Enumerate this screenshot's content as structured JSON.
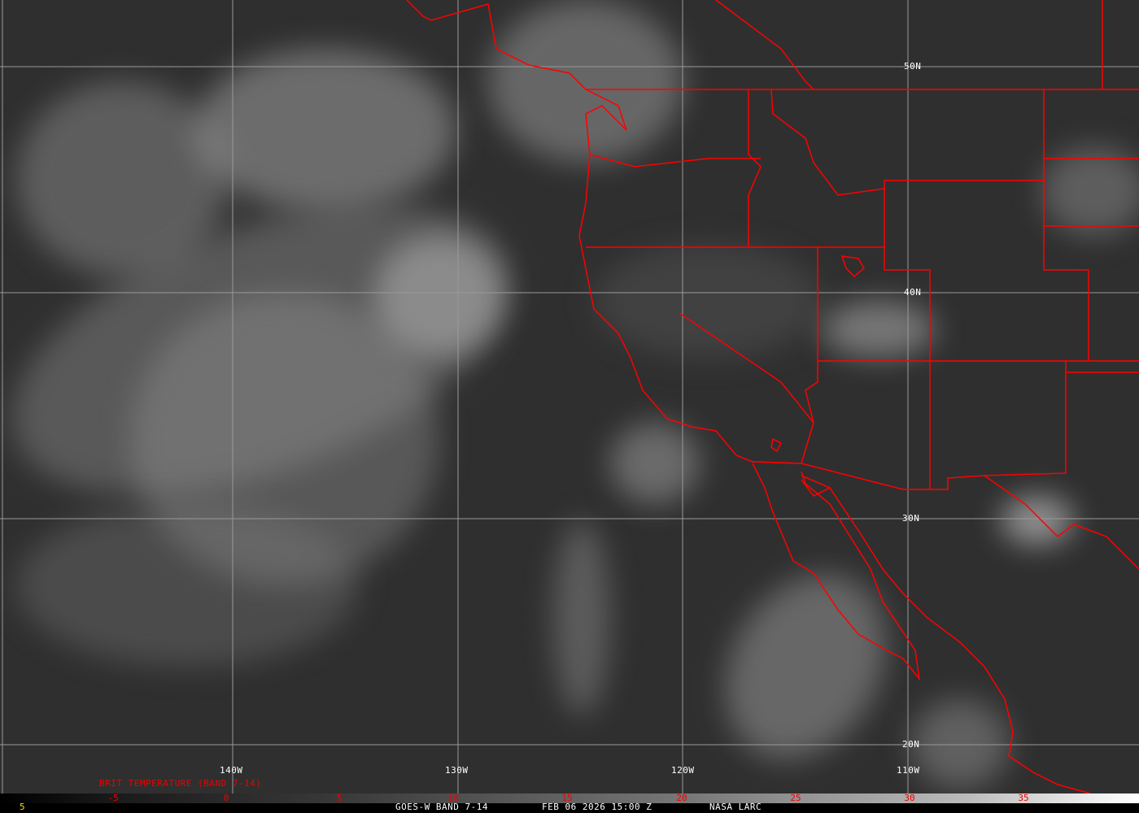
{
  "grid_labels": {
    "lat": [
      "50N",
      "40N",
      "30N",
      "20N"
    ],
    "lon": [
      "140W",
      "130W",
      "120W",
      "110W"
    ]
  },
  "legend": {
    "title": "BRIT TEMPERATURE (BAND 7-14)",
    "ticks": [
      "-5",
      "0",
      "5",
      "10",
      "15",
      "20",
      "25",
      "30",
      "35"
    ],
    "left_value": "5"
  },
  "footer": {
    "satellite": "GOES-W BAND 7-14",
    "datetime": "FEB 06 2026 15:00 Z",
    "source": "NASA LARC"
  },
  "colors": {
    "borders": "#ff0000",
    "legend_text": "#ff0000",
    "grid": "#9a9a9a"
  }
}
